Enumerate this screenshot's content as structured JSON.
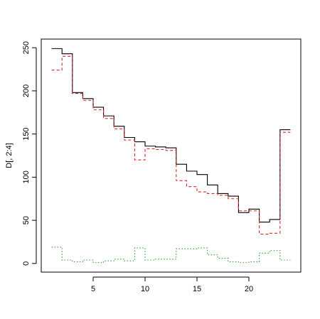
{
  "chart_data": {
    "type": "line",
    "title": "",
    "xlabel": "",
    "ylabel": "D[, 2:4]",
    "xlim": [
      0,
      25
    ],
    "ylim": [
      -10,
      260
    ],
    "x_ticks": [
      5,
      10,
      15,
      20
    ],
    "y_ticks": [
      0,
      50,
      100,
      150,
      200,
      250
    ],
    "grid": false,
    "x": [
      1,
      2,
      3,
      4,
      5,
      6,
      7,
      8,
      9,
      10,
      11,
      12,
      13,
      14,
      15,
      16,
      17,
      18,
      19,
      20,
      21,
      22,
      23,
      24
    ],
    "series": [
      {
        "color": "#000000",
        "dash": "solid",
        "values": [
          249,
          243,
          198,
          191,
          181,
          171,
          159,
          146,
          141,
          136,
          135,
          134,
          115,
          107,
          103,
          91,
          81,
          78,
          59,
          63,
          48,
          51,
          155,
          155
        ]
      },
      {
        "color": "#d62728",
        "dash": "dashed",
        "values": [
          224,
          240,
          197,
          189,
          178,
          168,
          156,
          143,
          120,
          133,
          132,
          131,
          96,
          89,
          83,
          81,
          79,
          75,
          61,
          61,
          34,
          35,
          152,
          152
        ]
      },
      {
        "color": "#2ca02c",
        "dash": "dotted",
        "values": [
          19,
          4,
          2,
          4,
          1,
          3,
          5,
          3,
          18,
          4,
          5,
          5,
          17,
          17,
          18,
          10,
          6,
          2,
          1,
          2,
          12,
          15,
          4,
          4
        ]
      }
    ]
  }
}
